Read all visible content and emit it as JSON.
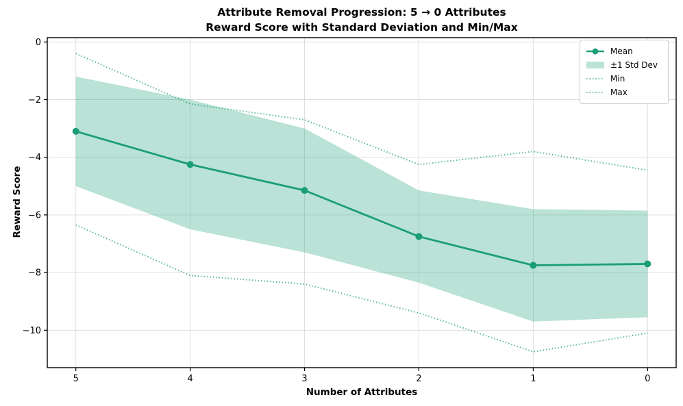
{
  "title": {
    "line1": "Attribute Removal Progression: 5 → 0 Attributes",
    "line2": "Reward Score with Standard Deviation and Min/Max"
  },
  "axes": {
    "xlabel": "Number of Attributes",
    "ylabel": "Reward Score",
    "xtick_labels": [
      "5",
      "4",
      "3",
      "2",
      "1",
      "0"
    ],
    "ytick_labels": [
      "0",
      "−2",
      "−4",
      "−6",
      "−8",
      "−10"
    ]
  },
  "legend": {
    "items": [
      {
        "label": "Mean",
        "swatch": "line-marker"
      },
      {
        "label": "±1 Std Dev",
        "swatch": "patch"
      },
      {
        "label": "Min",
        "swatch": "dotted"
      },
      {
        "label": "Max",
        "swatch": "dotted"
      }
    ],
    "position": "upper right"
  },
  "colors": {
    "line": "#1b9e77",
    "band_fill": "rgba(27,158,119,0.3)",
    "dotted_opacity": "0.78",
    "grid": "#dcdcdc",
    "spine": "#000000",
    "text": "#000000"
  },
  "chart_data": {
    "type": "line",
    "title": "Attribute Removal Progression: 5 → 0 Attributes",
    "subtitle": "Reward Score with Standard Deviation and Min/Max",
    "xlabel": "Number of Attributes",
    "ylabel": "Reward Score",
    "x": [
      5,
      4,
      3,
      2,
      1,
      0
    ],
    "series": [
      {
        "name": "Mean",
        "style": "solid-marker",
        "values": [
          -3.1,
          -4.25,
          -5.15,
          -6.75,
          -7.75,
          -7.7
        ]
      },
      {
        "name": "Min",
        "style": "dotted",
        "values": [
          -6.35,
          -8.1,
          -8.4,
          -9.4,
          -10.75,
          -10.1
        ]
      },
      {
        "name": "Max",
        "style": "dotted",
        "values": [
          -0.4,
          -2.15,
          -2.7,
          -4.25,
          -3.8,
          -4.45
        ]
      }
    ],
    "band": {
      "name": "±1 Std Dev",
      "upper": [
        -1.2,
        -2.0,
        -3.0,
        -5.15,
        -5.8,
        -5.85
      ],
      "lower": [
        -5.0,
        -6.5,
        -7.3,
        -8.35,
        -9.7,
        -9.55
      ]
    },
    "xticks": [
      5,
      4,
      3,
      2,
      1,
      0
    ],
    "yticks": [
      0,
      -2,
      -4,
      -6,
      -8,
      -10
    ],
    "xlim": [
      5.25,
      -0.25
    ],
    "ylim": [
      -11.3,
      0.15
    ],
    "x_axis_inverted": true,
    "grid": true,
    "legend_position": "upper right"
  }
}
